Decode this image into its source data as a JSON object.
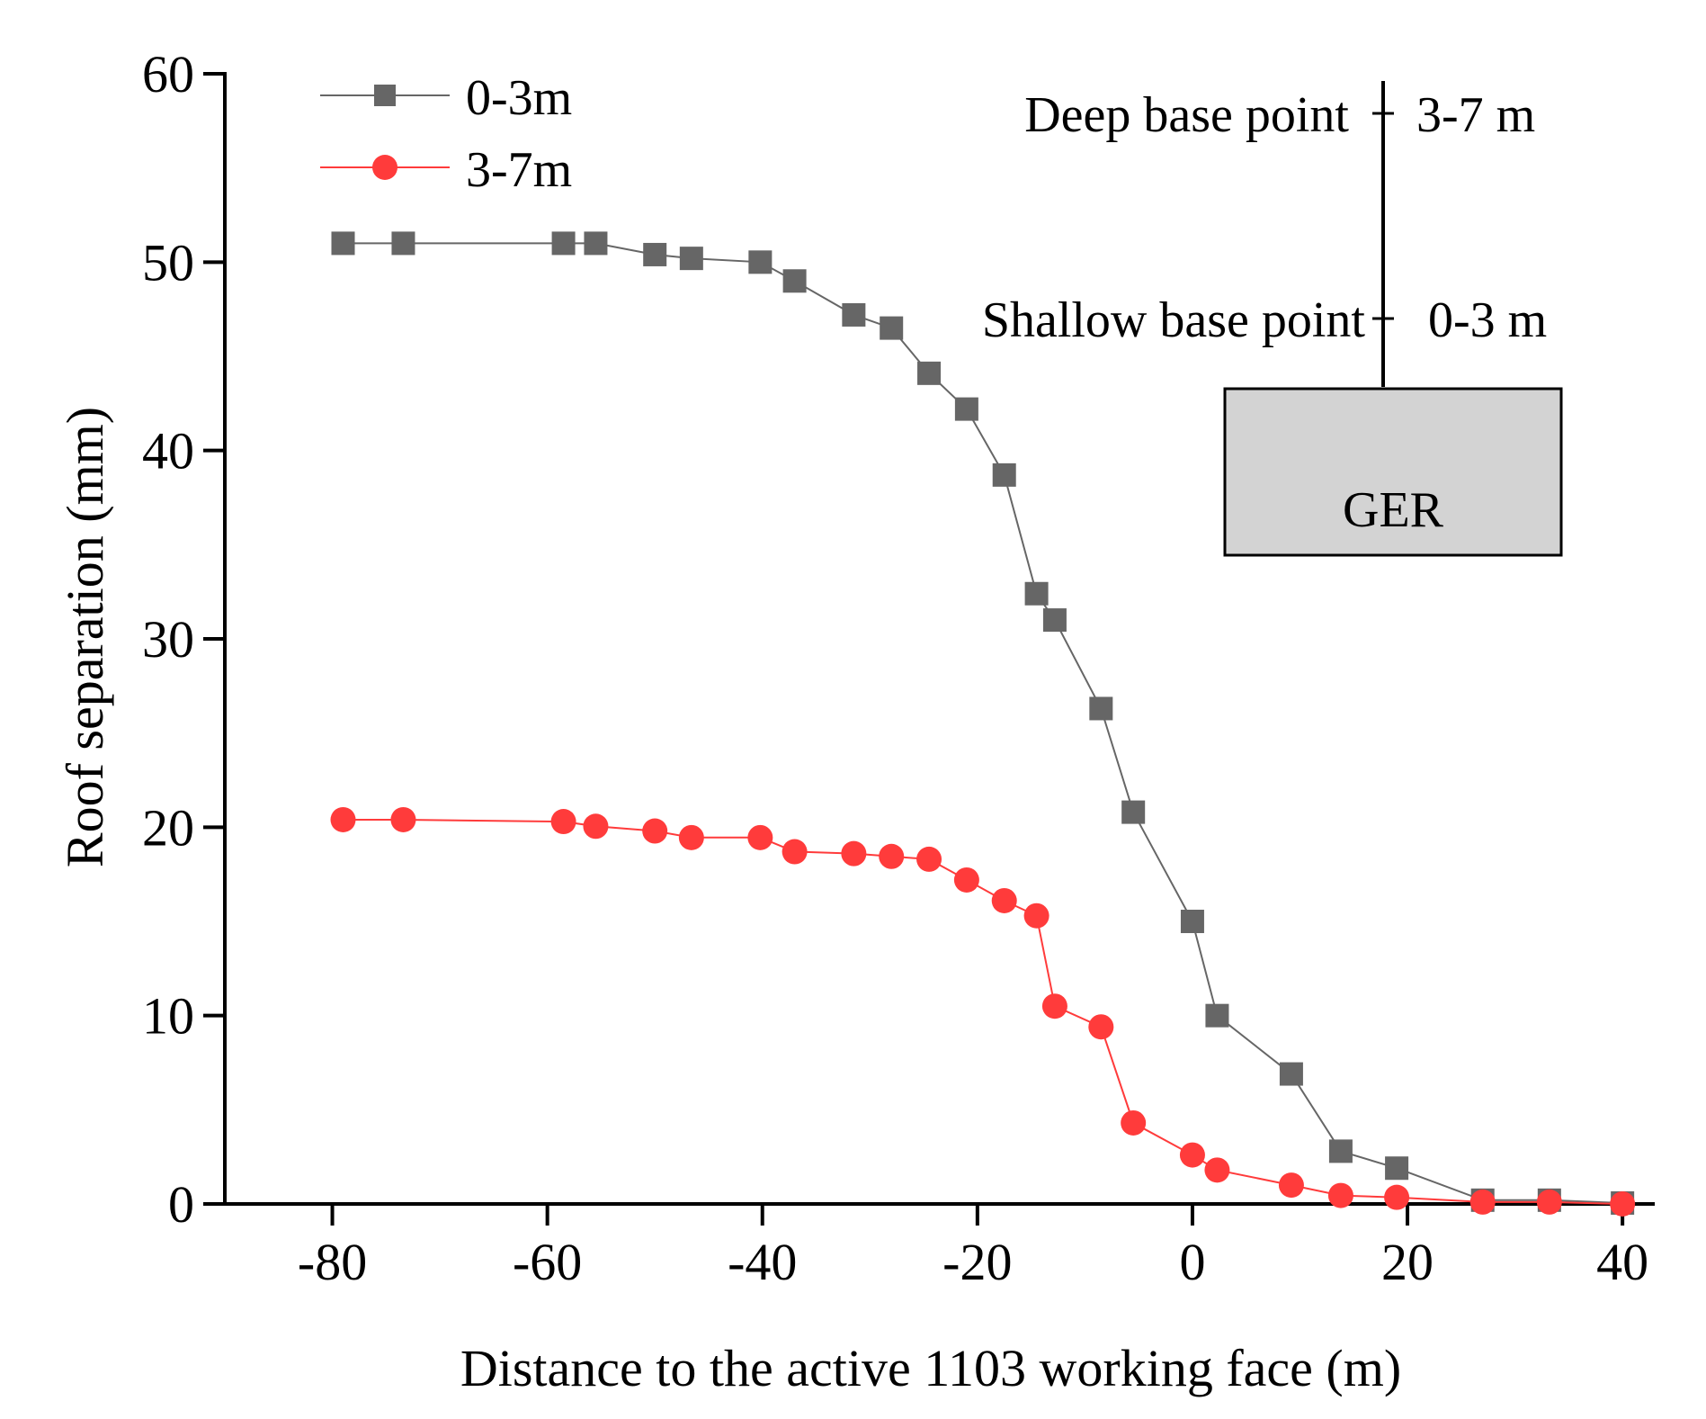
{
  "chart_data": {
    "type": "line",
    "title": "",
    "xlabel": "Distance to the active 1103 working face (m)",
    "ylabel": "Roof separation (mm)",
    "xlim": [
      -90,
      43
    ],
    "ylim": [
      0,
      60
    ],
    "xticks": [
      -80,
      -60,
      -40,
      -20,
      0,
      20,
      40
    ],
    "yticks": [
      0,
      10,
      20,
      30,
      40,
      50,
      60
    ],
    "xtick_labels": [
      "-80",
      "-60",
      "-40",
      "-20",
      "0",
      "20",
      "40"
    ],
    "ytick_labels": [
      "0",
      "10",
      "20",
      "30",
      "40",
      "50",
      "60"
    ],
    "grid": false,
    "legend_position": "top-left",
    "series": [
      {
        "name": "0-3m",
        "color": "#666666",
        "marker": "square",
        "points": [
          [
            -79,
            51
          ],
          [
            -73.4,
            51
          ],
          [
            -58.5,
            51
          ],
          [
            -55.5,
            51
          ],
          [
            -50,
            50.4
          ],
          [
            -46.6,
            50.2
          ],
          [
            -40.2,
            50
          ],
          [
            -37,
            49
          ],
          [
            -31.5,
            47.2
          ],
          [
            -28,
            46.5
          ],
          [
            -24.5,
            44.1
          ],
          [
            -21,
            42.2
          ],
          [
            -17.5,
            38.7
          ],
          [
            -14.5,
            32.4
          ],
          [
            -12.8,
            31
          ],
          [
            -8.5,
            26.3
          ],
          [
            -5.5,
            20.8
          ],
          [
            0,
            15
          ],
          [
            2.3,
            10
          ],
          [
            9.2,
            6.9
          ],
          [
            13.8,
            2.8
          ],
          [
            19,
            1.9
          ],
          [
            27,
            0.2
          ],
          [
            33.2,
            0.2
          ],
          [
            40,
            0.05
          ]
        ]
      },
      {
        "name": "3-7m",
        "color": "#ff3b3b",
        "marker": "circle",
        "points": [
          [
            -79,
            20.4
          ],
          [
            -73.4,
            20.4
          ],
          [
            -58.5,
            20.3
          ],
          [
            -55.5,
            20.05
          ],
          [
            -50,
            19.8
          ],
          [
            -46.6,
            19.45
          ],
          [
            -40.2,
            19.45
          ],
          [
            -37,
            18.7
          ],
          [
            -31.5,
            18.6
          ],
          [
            -28,
            18.45
          ],
          [
            -24.5,
            18.3
          ],
          [
            -21,
            17.2
          ],
          [
            -17.5,
            16.1
          ],
          [
            -14.5,
            15.3
          ],
          [
            -12.8,
            10.5
          ],
          [
            -8.5,
            9.4
          ],
          [
            -5.5,
            4.3
          ],
          [
            0,
            2.6
          ],
          [
            2.3,
            1.8
          ],
          [
            9.2,
            1.0
          ],
          [
            13.8,
            0.45
          ],
          [
            19,
            0.35
          ],
          [
            27,
            0.1
          ],
          [
            33.2,
            0.1
          ],
          [
            40,
            0.0
          ]
        ]
      }
    ],
    "annotations": {
      "deep_label": "Deep base point",
      "deep_value": "3-7 m",
      "shallow_label": "Shallow base point",
      "shallow_value": "0-3 m",
      "box_label": "GER",
      "box_color": "#d3d3d3"
    }
  }
}
